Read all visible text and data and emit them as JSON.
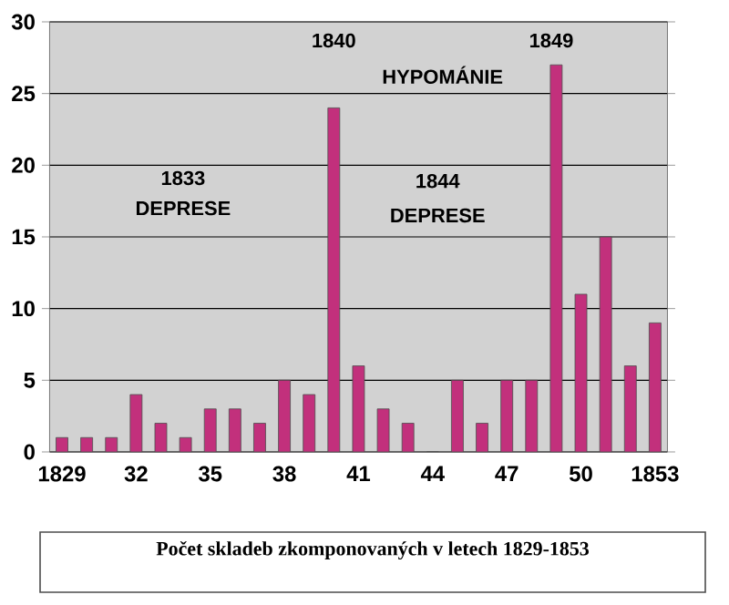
{
  "chart_data": {
    "type": "bar",
    "title": "Počet skladeb zkomponovaných v letech 1829-1853",
    "categories": [
      "1829",
      null,
      null,
      "32",
      null,
      null,
      "35",
      null,
      null,
      "38",
      null,
      null,
      "41",
      null,
      null,
      "44",
      null,
      null,
      "47",
      null,
      null,
      "50",
      null,
      null,
      "1853"
    ],
    "values": [
      1,
      1,
      1,
      4,
      2,
      1,
      3,
      3,
      2,
      5,
      4,
      24,
      6,
      3,
      2,
      0,
      5,
      2,
      5,
      5,
      27,
      11,
      15,
      6,
      9
    ],
    "color": "#c2307c",
    "ylim": [
      0,
      30
    ],
    "yticks": [
      0,
      5,
      10,
      15,
      20,
      25,
      30
    ],
    "grid": "y",
    "annotations": [
      "1840",
      "HYPOMÁNIE",
      "1849",
      "1833",
      "DEPRESE",
      "1844",
      "DEPRESE"
    ]
  }
}
